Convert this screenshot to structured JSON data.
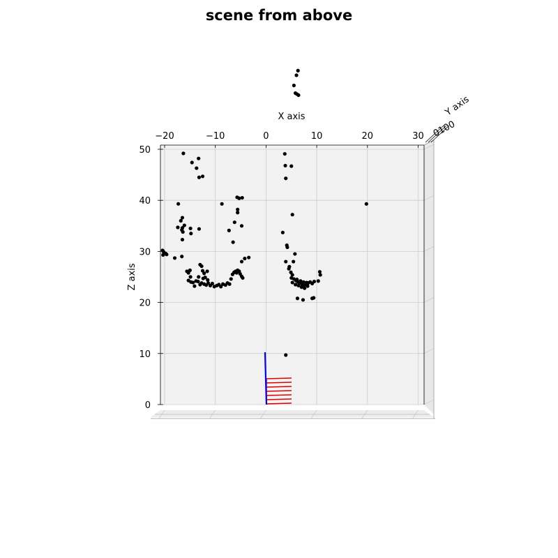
{
  "chart_data": {
    "type": "scatter",
    "title": "scene from above",
    "xlabel": "X axis",
    "ylabel": "Y axis",
    "zlabel": "Z axis",
    "xlim": [
      -20,
      30
    ],
    "zlim": [
      0,
      50
    ],
    "x_ticks": [
      -20,
      -10,
      0,
      10,
      20,
      30
    ],
    "z_ticks": [
      0,
      10,
      20,
      30,
      40,
      50
    ],
    "y_tick_labels_clutter": "0100",
    "grid": true,
    "colors": {
      "points": "#000000",
      "red_lines": "#e00000",
      "blue_line": "#0000ff",
      "pane": "#f2f2f2",
      "grid": "#cccccc"
    },
    "points": [
      [
        -16.3,
        49.2
      ],
      [
        -14.6,
        47.4
      ],
      [
        -13.3,
        48.2
      ],
      [
        -13.7,
        46.3
      ],
      [
        -13.2,
        44.5
      ],
      [
        -12.5,
        44.7
      ],
      [
        -17.3,
        39.3
      ],
      [
        -16.8,
        36.0
      ],
      [
        -16.5,
        36.6
      ],
      [
        -16.1,
        35.1
      ],
      [
        -17.4,
        34.7
      ],
      [
        -16.5,
        34.6
      ],
      [
        -16.6,
        34.2
      ],
      [
        -16.4,
        33.8
      ],
      [
        -14.9,
        34.5
      ],
      [
        -14.8,
        33.5
      ],
      [
        -13.2,
        34.4
      ],
      [
        -16.5,
        32.3
      ],
      [
        -20.4,
        30.2
      ],
      [
        -20.2,
        29.9
      ],
      [
        -19.8,
        29.6
      ],
      [
        -20.3,
        29.3
      ],
      [
        -19.6,
        29.4
      ],
      [
        -18.0,
        28.7
      ],
      [
        -16.6,
        29.0
      ],
      [
        -15.6,
        26.1
      ],
      [
        -15.0,
        26.3
      ],
      [
        -15.3,
        25.8
      ],
      [
        -14.9,
        25.0
      ],
      [
        -15.3,
        24.3
      ],
      [
        -14.8,
        24.0
      ],
      [
        -14.4,
        23.9
      ],
      [
        -14.1,
        23.2
      ],
      [
        -13.8,
        24.2
      ],
      [
        -13.4,
        24.1
      ],
      [
        -13.0,
        23.5
      ],
      [
        -12.7,
        23.8
      ],
      [
        -12.2,
        23.6
      ],
      [
        -11.8,
        23.4
      ],
      [
        -11.4,
        23.8
      ],
      [
        -11.0,
        23.3
      ],
      [
        -10.6,
        23.7
      ],
      [
        -10.2,
        23.1
      ],
      [
        -9.7,
        23.3
      ],
      [
        -9.3,
        23.5
      ],
      [
        -8.9,
        23.1
      ],
      [
        -8.5,
        23.6
      ],
      [
        -8.0,
        23.4
      ],
      [
        -7.6,
        23.8
      ],
      [
        -7.2,
        23.6
      ],
      [
        -6.9,
        24.6
      ],
      [
        -6.6,
        25.5
      ],
      [
        -6.3,
        25.9
      ],
      [
        -6.0,
        26.1
      ],
      [
        -5.8,
        25.8
      ],
      [
        -5.6,
        26.3
      ],
      [
        -5.3,
        26.1
      ],
      [
        -5.1,
        25.6
      ],
      [
        -4.8,
        25.1
      ],
      [
        -4.6,
        24.8
      ],
      [
        -4.8,
        28.0
      ],
      [
        -4.2,
        28.6
      ],
      [
        -3.4,
        28.8
      ],
      [
        -13.0,
        27.4
      ],
      [
        -12.7,
        27.1
      ],
      [
        -12.5,
        26.2
      ],
      [
        -12.2,
        25.7
      ],
      [
        -11.6,
        26.1
      ],
      [
        -12.0,
        24.9
      ],
      [
        -11.5,
        24.4
      ],
      [
        -12.4,
        24.7
      ],
      [
        -13.3,
        25.0
      ],
      [
        -8.7,
        39.3
      ],
      [
        -5.7,
        40.6
      ],
      [
        -5.3,
        40.4
      ],
      [
        -4.7,
        40.5
      ],
      [
        -5.6,
        38.2
      ],
      [
        -5.6,
        37.6
      ],
      [
        -6.2,
        35.7
      ],
      [
        -4.8,
        35.0
      ],
      [
        -7.3,
        34.1
      ],
      [
        -6.5,
        31.8
      ],
      [
        3.7,
        49.1
      ],
      [
        3.8,
        46.8
      ],
      [
        5.0,
        46.7
      ],
      [
        3.9,
        44.3
      ],
      [
        5.2,
        37.2
      ],
      [
        3.3,
        33.7
      ],
      [
        4.1,
        31.2
      ],
      [
        4.2,
        30.8
      ],
      [
        5.7,
        29.5
      ],
      [
        5.4,
        28.0
      ],
      [
        3.9,
        28.0
      ],
      [
        4.6,
        27.0
      ],
      [
        4.5,
        26.6
      ],
      [
        4.9,
        25.9
      ],
      [
        5.2,
        25.4
      ],
      [
        5.0,
        24.8
      ],
      [
        5.5,
        24.6
      ],
      [
        5.9,
        24.3
      ],
      [
        6.3,
        24.0
      ],
      [
        6.7,
        23.8
      ],
      [
        7.1,
        23.6
      ],
      [
        7.5,
        23.3
      ],
      [
        7.9,
        23.5
      ],
      [
        8.3,
        23.8
      ],
      [
        8.7,
        24.0
      ],
      [
        9.1,
        23.7
      ],
      [
        9.5,
        24.1
      ],
      [
        5.2,
        23.9
      ],
      [
        5.8,
        23.5
      ],
      [
        6.4,
        23.3
      ],
      [
        7.0,
        23.0
      ],
      [
        7.6,
        22.8
      ],
      [
        8.2,
        23.2
      ],
      [
        6.1,
        24.5
      ],
      [
        6.8,
        24.2
      ],
      [
        7.4,
        24.0
      ],
      [
        8.0,
        23.9
      ],
      [
        10.3,
        24.2
      ],
      [
        10.7,
        25.4
      ],
      [
        10.6,
        26.0
      ],
      [
        6.2,
        20.8
      ],
      [
        7.3,
        20.5
      ],
      [
        9.1,
        20.8
      ],
      [
        9.4,
        20.9
      ],
      [
        3.9,
        9.7
      ],
      [
        19.8,
        39.3
      ],
      [
        6.3,
        65.4
      ],
      [
        6.0,
        64.5
      ],
      [
        5.5,
        62.5
      ],
      [
        5.8,
        61.0
      ],
      [
        6.1,
        60.8
      ],
      [
        6.4,
        60.6
      ]
    ]
  }
}
